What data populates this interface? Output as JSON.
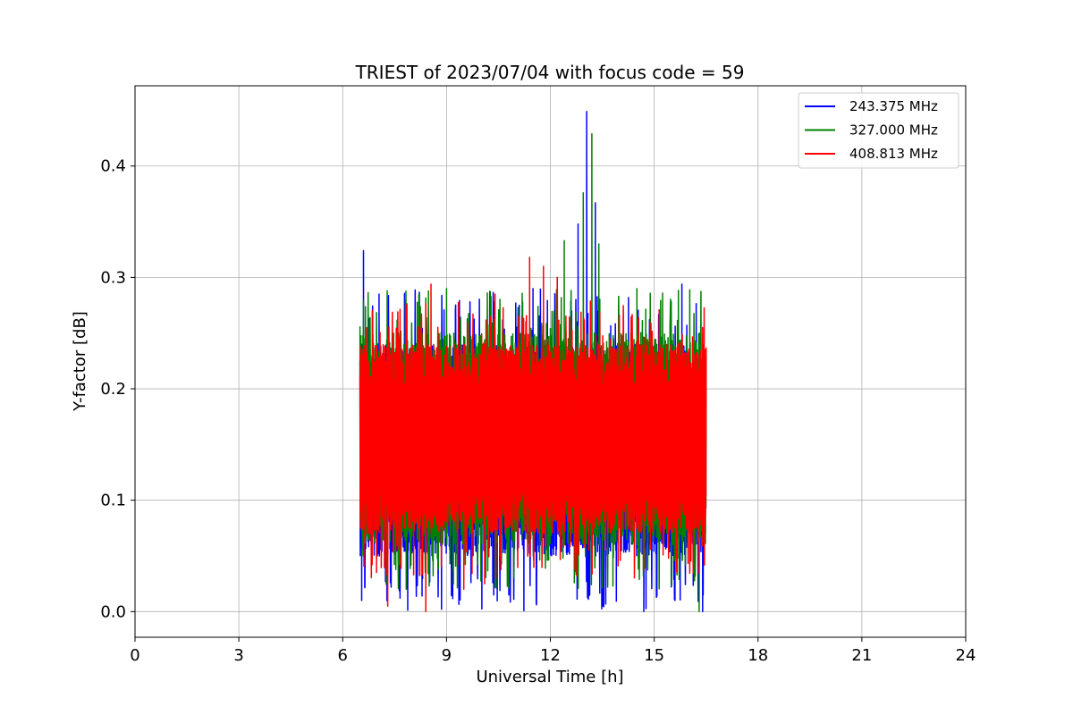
{
  "chart_data": {
    "type": "line",
    "title": "TRIEST of 2023/07/04 with focus code = 59",
    "xlabel": "Universal Time [h]",
    "ylabel": "Y-factor [dB]",
    "xlim": [
      0,
      24
    ],
    "ylim": [
      -0.023,
      0.472
    ],
    "xticks": [
      0,
      3,
      6,
      9,
      12,
      15,
      18,
      21,
      24
    ],
    "yticks": [
      0.0,
      0.1,
      0.2,
      0.3,
      0.4
    ],
    "ytick_labels": [
      "0.0",
      "0.1",
      "0.2",
      "0.3",
      "0.4"
    ],
    "grid": true,
    "legend_position": "top-right",
    "time_range": [
      6.5,
      16.5
    ],
    "series": [
      {
        "name": "243.375 MHz",
        "color": "#0000ff",
        "band": [
          0.03,
          0.25
        ],
        "typical_low": 0.05,
        "typical_high": 0.24,
        "peaks": [
          [
            6.6,
            0.324
          ],
          [
            7.05,
            0.285
          ],
          [
            13.05,
            0.449
          ],
          [
            13.3,
            0.367
          ],
          [
            12.8,
            0.348
          ],
          [
            15.8,
            0.294
          ],
          [
            11.5,
            0.29
          ]
        ],
        "dips": [
          [
            6.55,
            0.01
          ],
          [
            7.0,
            0.05
          ],
          [
            15.6,
            0.01
          ],
          [
            16.4,
            0.0
          ],
          [
            14.7,
            0.0
          ]
        ]
      },
      {
        "name": "327.000 MHz",
        "color": "#008000",
        "band": [
          0.05,
          0.25
        ],
        "typical_low": 0.06,
        "typical_high": 0.25,
        "peaks": [
          [
            13.2,
            0.429
          ],
          [
            12.95,
            0.376
          ],
          [
            12.4,
            0.333
          ],
          [
            13.4,
            0.33
          ],
          [
            9.0,
            0.29
          ],
          [
            14.5,
            0.29
          ],
          [
            6.6,
            0.27
          ]
        ],
        "dips": [
          [
            16.3,
            0.0
          ],
          [
            9.2,
            0.05
          ],
          [
            7.6,
            0.05
          ]
        ]
      },
      {
        "name": "408.813 MHz",
        "color": "#ff0000",
        "band": [
          0.06,
          0.24
        ],
        "typical_low": 0.07,
        "typical_high": 0.24,
        "peaks": [
          [
            11.4,
            0.318
          ],
          [
            11.8,
            0.31
          ],
          [
            8.55,
            0.294
          ],
          [
            10.4,
            0.285
          ],
          [
            12.2,
            0.3
          ],
          [
            6.7,
            0.255
          ],
          [
            16.4,
            0.255
          ]
        ],
        "dips": [
          [
            8.4,
            0.0
          ],
          [
            7.3,
            0.005
          ],
          [
            9.5,
            0.02
          ],
          [
            10.1,
            0.025
          ]
        ]
      }
    ]
  }
}
